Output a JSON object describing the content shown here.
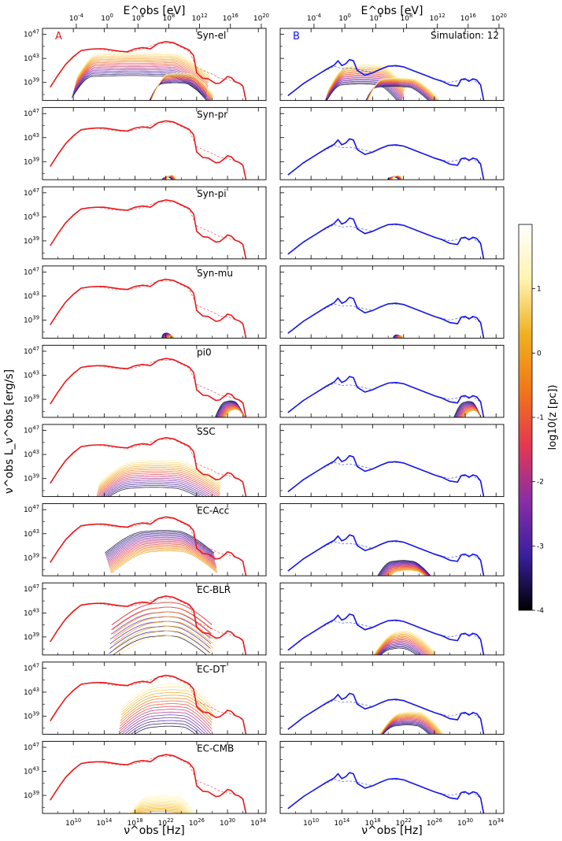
{
  "figure": {
    "top_axis_label": "E^obs [eV]",
    "bottom_axis_label": "ν^obs [Hz]",
    "y_axis_label": "ν^obs L_ν^obs [erg/s]",
    "colorbar_label": "log10(z [pc])",
    "column_a_letter": "A",
    "column_b_letter": "B",
    "simulation_label": "Simulation: 12",
    "colors": {
      "column_a_total": "#e8191c",
      "column_b_total": "#1414e6",
      "frame": "#000000"
    }
  },
  "chart_data": {
    "type": "line",
    "x_log_range_hz": [
      6,
      35
    ],
    "y_log_range": [
      36,
      48
    ],
    "x_ticks": [
      "10^10",
      "10^14",
      "10^18",
      "10^22",
      "10^26",
      "10^30",
      "10^34"
    ],
    "x_tick_values": [
      10,
      14,
      18,
      22,
      26,
      30,
      34
    ],
    "top_ticks": [
      "10^-4",
      "10^0",
      "10^4",
      "10^8",
      "10^12",
      "10^16",
      "10^20"
    ],
    "top_tick_values": [
      -4,
      0,
      4,
      8,
      12,
      16,
      20
    ],
    "y_ticks": [
      "10^47",
      "10^43",
      "10^39"
    ],
    "y_tick_values": [
      47,
      43,
      39
    ],
    "colorbar": {
      "range": [
        -4,
        2
      ],
      "ticks": [
        "-4",
        "-3",
        "-2",
        "-1",
        "0",
        "1"
      ],
      "tick_values": [
        -4,
        -3,
        -2,
        -1,
        0,
        1
      ],
      "colormap": [
        "#000000",
        "#3a1f9e",
        "#8a2ea6",
        "#e53850",
        "#f07818",
        "#f0b020",
        "#fff3b0",
        "#ffffff"
      ]
    },
    "column_a_total": {
      "log_nu": [
        7,
        8,
        9,
        10,
        11,
        12,
        13,
        14,
        15,
        16,
        17,
        18,
        19,
        20,
        21,
        22,
        23,
        24,
        25,
        25.6,
        26,
        26.8,
        27.5,
        28,
        28.5,
        29,
        29.6,
        30,
        30.5,
        31,
        31.5,
        32,
        32.4
      ],
      "log_L": [
        38.2,
        40.2,
        42.0,
        43.3,
        44.3,
        44.5,
        44.6,
        44.6,
        44.4,
        44.2,
        44.1,
        44.6,
        44.8,
        44.6,
        45.5,
        45.8,
        45.6,
        45.0,
        44.4,
        43.5,
        40.6,
        39.7,
        39.6,
        39.2,
        38.8,
        38.9,
        39.5,
        40.0,
        39.8,
        39.1,
        38.9,
        38.4,
        36.0
      ]
    },
    "column_a_dashed": {
      "log_nu": [
        7,
        9,
        11,
        13,
        15,
        17,
        19,
        21,
        23,
        25,
        26,
        27,
        28,
        29,
        30,
        31,
        32
      ],
      "log_L": [
        38.2,
        42.0,
        44.3,
        44.6,
        44.2,
        44.0,
        44.6,
        45.5,
        45.5,
        44.2,
        41.5,
        40.9,
        40.4,
        39.7,
        39.5,
        39.1,
        38.6
      ]
    },
    "column_b_total": {
      "log_nu": [
        7,
        8,
        9,
        10,
        11,
        12,
        13,
        13.5,
        14,
        14.5,
        15,
        15.5,
        16,
        17,
        18,
        19,
        20,
        21,
        22,
        23,
        24,
        25,
        26,
        27,
        28,
        29,
        29.5,
        30,
        30.5,
        31,
        31.5,
        32,
        32.4
      ],
      "log_L": [
        36.8,
        37.8,
        38.8,
        39.6,
        40.4,
        41.2,
        41.9,
        42.6,
        41.8,
        42.1,
        42.8,
        42.6,
        41.0,
        40.2,
        40.6,
        41.2,
        41.7,
        41.8,
        41.6,
        41.1,
        40.6,
        40.1,
        39.6,
        39.2,
        38.6,
        38.4,
        39.5,
        39.6,
        39.2,
        39.6,
        39.4,
        38.6,
        36.0
      ]
    },
    "column_b_dashed": {
      "log_nu": [
        7,
        9,
        11,
        13,
        14,
        15,
        16,
        18,
        20,
        22,
        24,
        26,
        28,
        29.5,
        31,
        32
      ],
      "log_L": [
        36.8,
        38.8,
        40.4,
        41.7,
        41.3,
        41.4,
        41.2,
        40.6,
        41.7,
        41.6,
        40.6,
        39.6,
        39.0,
        39.4,
        39.4,
        38.6
      ]
    },
    "panels": [
      {
        "label": "Syn-el",
        "a_set": {
          "lo": 10.2,
          "hi": 27.5,
          "plo": 13,
          "phi": 23,
          "top": 43.8,
          "bot": 40.0
        },
        "a_set2": {
          "lo": 20,
          "hi": 28,
          "plo": 22,
          "phi": 25,
          "top": 40.4,
          "bot": 38.8
        },
        "a_order": "bright-top",
        "b_set": {
          "lo": 12,
          "hi": 22,
          "plo": 14.5,
          "phi": 19,
          "top": 41.8,
          "bot": 38.6
        },
        "b_set2": {
          "lo": 17,
          "hi": 26.5,
          "plo": 19,
          "phi": 23,
          "top": 39.6,
          "bot": 38.2
        },
        "b_order": "bright-top"
      },
      {
        "label": "Syn-pr",
        "a_set": {
          "lo": 21,
          "hi": 24,
          "plo": 22.2,
          "phi": 22.8,
          "top": 36.7,
          "bot": 36.3
        },
        "a_order": "bright-top",
        "b_set": {
          "lo": 19.5,
          "hi": 22.5,
          "plo": 20.6,
          "phi": 21.4,
          "top": 36.6,
          "bot": 36.3
        },
        "b_order": "bright-top"
      },
      {
        "label": "Syn-pi",
        "a_set": null,
        "b_set": null
      },
      {
        "label": "Syn-mu",
        "a_set": {
          "lo": 21.5,
          "hi": 23.3,
          "plo": 22.1,
          "phi": 22.7,
          "top": 36.7,
          "bot": 36.2
        },
        "a_order": "dark-top",
        "b_set": {
          "lo": 20.7,
          "hi": 22,
          "plo": 21.2,
          "phi": 21.6,
          "top": 36.4,
          "bot": 36.2
        },
        "b_order": "dark-top"
      },
      {
        "label": "pi0",
        "a_set": {
          "lo": 28.5,
          "hi": 32.8,
          "plo": 30.2,
          "phi": 31.2,
          "top": 38.6,
          "bot": 37.2
        },
        "a_order": "dark-top",
        "b_set": {
          "lo": 28.6,
          "hi": 32.6,
          "plo": 30.3,
          "phi": 31.2,
          "top": 38.5,
          "bot": 37.0
        },
        "b_order": "dark-top"
      },
      {
        "label": "SSC",
        "a_set": {
          "lo": 13,
          "hi": 29,
          "plo": 18,
          "phi": 23.5,
          "top": 41.9,
          "bot": 37.4
        },
        "a_order": "bright-top",
        "b_set": null
      },
      {
        "label": "EC-Acc",
        "a_set": {
          "lo": 14.5,
          "hi": 28.5,
          "plo": 20,
          "phi": 24,
          "top": 43.4,
          "bot": 40.0
        },
        "a_order": "dark-top",
        "b_set": {
          "lo": 18.5,
          "hi": 26.5,
          "plo": 21,
          "phi": 23.5,
          "top": 38.4,
          "bot": 36.8
        },
        "b_order": "dark-top"
      },
      {
        "label": "EC-BLR",
        "a_set": {
          "lo": 15,
          "hi": 28,
          "plo": 21,
          "phi": 23.5,
          "top": 45.0,
          "bot": 37.6
        },
        "a_order": "bright-mid",
        "b_set": {
          "lo": 17.8,
          "hi": 26,
          "plo": 21,
          "phi": 22.5,
          "top": 39.9,
          "bot": 37.0
        },
        "b_order": "bright-top"
      },
      {
        "label": "EC-DT",
        "a_set": {
          "lo": 16,
          "hi": 28,
          "plo": 21,
          "phi": 24.5,
          "top": 44.2,
          "bot": 37.2
        },
        "a_order": "bright-top",
        "b_set": {
          "lo": 18.5,
          "hi": 27,
          "plo": 21.5,
          "phi": 24,
          "top": 39.6,
          "bot": 37.4
        },
        "b_order": "bright-top"
      },
      {
        "label": "EC-CMB",
        "a_set": {
          "lo": 16.5,
          "hi": 26,
          "plo": 19.5,
          "phi": 23.5,
          "top": 38.8,
          "bot": 36.2
        },
        "a_order": "bright-only",
        "b_set": null
      }
    ]
  }
}
